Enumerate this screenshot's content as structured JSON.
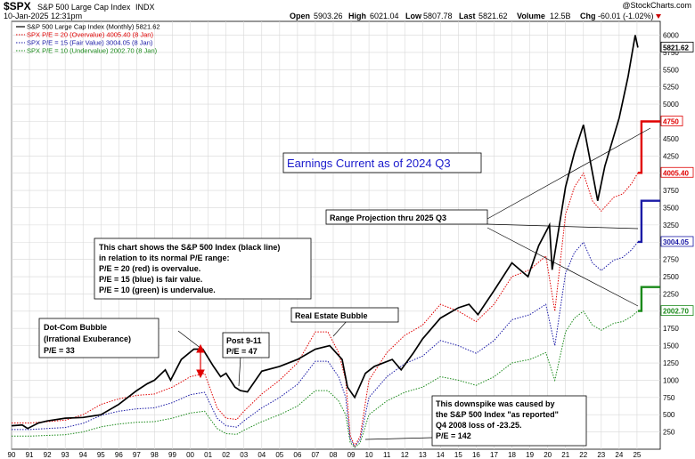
{
  "header": {
    "symbol": "$SPX",
    "name": "S&P 500 Large Cap Index",
    "exchange": "INDX",
    "date": "10-Jan-2025 12:31pm",
    "brand": "@StockCharts.com",
    "quote": {
      "open_label": "Open",
      "open": "5903.26",
      "high_label": "High",
      "high": "6021.04",
      "low_label": "Low",
      "low": "5807.78",
      "last_label": "Last",
      "last": "5821.62",
      "volume_label": "Volume",
      "volume": "12.5B",
      "chg_label": "Chg",
      "chg": "-60.01 (-1.02%)"
    }
  },
  "colors": {
    "black": "#000000",
    "red": "#e00000",
    "blue": "#1a1aa6",
    "green": "#1a8a1a",
    "title": "#1a1acc",
    "panel_bg": "#ffffff",
    "border": "#000000"
  },
  "legend": [
    {
      "text": "S&P 500 Large Cap Index (Monthly) 5821.62",
      "color": "#000000",
      "style": "solid"
    },
    {
      "text": "SPX P/E = 20 (Overvalue) 4005.40 (8 Jan)",
      "color": "#e00000",
      "style": "dotted"
    },
    {
      "text": "SPX P/E = 15 (Fair Value) 3004.05 (8 Jan)",
      "color": "#1a1aa6",
      "style": "dotted"
    },
    {
      "text": "SPX P/E = 10 (Undervalue) 2002.70 (8 Jan)",
      "color": "#1a8a1a",
      "style": "dotted"
    }
  ],
  "annotations": {
    "earnings": "Earnings Current as of 2024 Q3",
    "range": "Range Projection thru 2025 Q3",
    "explain": [
      "This chart shows the S&P 500 Index (black line)",
      "in relation to its normal P/E range:",
      "P/E = 20 (red) is overvalue.",
      "P/E = 15 (blue) is fair value.",
      "P/E = 10 (green) is undervalue."
    ],
    "dotcom": [
      "Dot-Com Bubble",
      "(Irrational Exuberance)",
      "P/E = 33"
    ],
    "post911": [
      "Post 9-11",
      "P/E = 47"
    ],
    "realestate": [
      "Real Estate Bubble"
    ],
    "downspike": [
      "This downspike was caused by",
      "the S&P 500 Index \"as reported\"",
      "Q4 2008 loss of -23.25.",
      "P/E = 142"
    ]
  },
  "chart_data": {
    "type": "line",
    "x_range": [
      1990.0,
      2026.3
    ],
    "ylim": [
      0,
      6200
    ],
    "y_ticks": [
      250,
      500,
      750,
      1000,
      1250,
      1500,
      1750,
      2000,
      2250,
      2500,
      2750,
      3000,
      3250,
      3500,
      3750,
      4000,
      4250,
      4500,
      4750,
      5000,
      5250,
      5500,
      5750,
      6000
    ],
    "x_tick_years": [
      1990,
      1991,
      1992,
      1993,
      1994,
      1995,
      1996,
      1997,
      1998,
      1999,
      2000,
      2001,
      2002,
      2003,
      2004,
      2005,
      2006,
      2007,
      2008,
      2009,
      2010,
      2011,
      2012,
      2013,
      2014,
      2015,
      2016,
      2017,
      2018,
      2019,
      2020,
      2021,
      2022,
      2023,
      2024,
      2025
    ],
    "x_tick_labels": [
      "90",
      "91",
      "92",
      "93",
      "94",
      "95",
      "96",
      "97",
      "98",
      "99",
      "00",
      "01",
      "02",
      "03",
      "04",
      "05",
      "06",
      "07",
      "08",
      "09",
      "10",
      "11",
      "12",
      "13",
      "14",
      "15",
      "16",
      "17",
      "18",
      "19",
      "20",
      "21",
      "22",
      "23",
      "24",
      "25"
    ],
    "series": [
      {
        "name": "S&P 500 Large Cap Index (Monthly) 5821.62",
        "color": "#000000",
        "x": [
          1990,
          1990.6,
          1990.9,
          1991.5,
          1992,
          1993,
          1994,
          1995,
          1996,
          1997,
          1997.6,
          1998,
          1998.6,
          1998.9,
          1999.5,
          2000.2,
          2000.7,
          2001.3,
          2001.7,
          2002.0,
          2002.5,
          2002.8,
          2003.2,
          2004,
          2005,
          2006,
          2007,
          2007.8,
          2008.5,
          2008.8,
          2009.2,
          2009.8,
          2010.3,
          2011.3,
          2011.8,
          2012.5,
          2013,
          2014,
          2015,
          2015.6,
          2016.1,
          2017,
          2018,
          2018.9,
          2019.5,
          2020.1,
          2020.25,
          2021,
          2021.5,
          2022.0,
          2022.8,
          2023.2,
          2024,
          2024.5,
          2024.9,
          2025.05
        ],
        "y": [
          340,
          350,
          300,
          380,
          410,
          450,
          460,
          500,
          650,
          850,
          950,
          1000,
          1150,
          1000,
          1300,
          1450,
          1450,
          1200,
          1050,
          1100,
          900,
          850,
          830,
          1130,
          1200,
          1300,
          1450,
          1500,
          1300,
          900,
          750,
          1100,
          1200,
          1300,
          1150,
          1400,
          1600,
          1900,
          2050,
          2100,
          1950,
          2300,
          2700,
          2500,
          2950,
          3250,
          2600,
          3800,
          4300,
          4700,
          3600,
          4100,
          4800,
          5400,
          6000,
          5821.62
        ]
      },
      {
        "name": "SPX P/E = 20 (Overvalue) 4005.40 (8 Jan)",
        "color": "#e00000",
        "x": [
          1990,
          1991,
          1992,
          1993,
          1994,
          1995,
          1996,
          1997,
          1998,
          1999,
          2000,
          2000.8,
          2001.5,
          2002,
          2002.6,
          2003,
          2004,
          2005,
          2006,
          2007,
          2007.7,
          2008.3,
          2008.7,
          2008.95,
          2009.2,
          2009.5,
          2010,
          2011,
          2012,
          2013,
          2014,
          2015,
          2016,
          2017,
          2018,
          2019,
          2019.9,
          2020.4,
          2020.7,
          2021,
          2021.5,
          2022,
          2022.5,
          2023,
          2023.7,
          2024.2,
          2024.7,
          2025.05
        ],
        "y": [
          380,
          380,
          400,
          420,
          500,
          650,
          730,
          780,
          800,
          900,
          1050,
          1100,
          600,
          450,
          430,
          550,
          800,
          1000,
          1250,
          1700,
          1700,
          1400,
          1000,
          200,
          50,
          180,
          1000,
          1400,
          1650,
          1800,
          2100,
          2000,
          1850,
          2100,
          2500,
          2600,
          2800,
          2000,
          2700,
          3400,
          3800,
          4000,
          3600,
          3450,
          3650,
          3700,
          3850,
          4005.4
        ]
      },
      {
        "name": "SPX P/E = 15 (Fair Value) 3004.05 (8 Jan)",
        "color": "#1a1aa6",
        "x": [
          1990,
          1991,
          1992,
          1993,
          1994,
          1995,
          1996,
          1997,
          1998,
          1999,
          2000,
          2000.8,
          2001.5,
          2002,
          2002.6,
          2003,
          2004,
          2005,
          2006,
          2007,
          2007.7,
          2008.3,
          2008.7,
          2008.95,
          2009.2,
          2009.5,
          2010,
          2011,
          2012,
          2013,
          2014,
          2015,
          2016,
          2017,
          2018,
          2019,
          2019.9,
          2020.4,
          2020.7,
          2021,
          2021.5,
          2022,
          2022.5,
          2023,
          2023.7,
          2024.2,
          2024.7,
          2025.05
        ],
        "y": [
          285,
          285,
          300,
          315,
          375,
          490,
          550,
          585,
          600,
          675,
          790,
          825,
          450,
          340,
          320,
          410,
          600,
          750,
          940,
          1275,
          1275,
          1050,
          750,
          150,
          40,
          135,
          750,
          1050,
          1240,
          1350,
          1575,
          1500,
          1390,
          1575,
          1875,
          1950,
          2100,
          1500,
          2025,
          2550,
          2850,
          3000,
          2700,
          2590,
          2740,
          2780,
          2890,
          3004.05
        ]
      },
      {
        "name": "SPX P/E = 10 (Undervalue) 2002.70 (8 Jan)",
        "color": "#1a8a1a",
        "x": [
          1990,
          1991,
          1992,
          1993,
          1994,
          1995,
          1996,
          1997,
          1998,
          1999,
          2000,
          2000.8,
          2001.5,
          2002,
          2002.6,
          2003,
          2004,
          2005,
          2006,
          2007,
          2007.7,
          2008.3,
          2008.7,
          2008.95,
          2009.2,
          2009.5,
          2010,
          2011,
          2012,
          2013,
          2014,
          2015,
          2016,
          2017,
          2018,
          2019,
          2019.9,
          2020.4,
          2020.7,
          2021,
          2021.5,
          2022,
          2022.5,
          2023,
          2023.7,
          2024.2,
          2024.7,
          2025.05
        ],
        "y": [
          190,
          190,
          200,
          210,
          250,
          325,
          365,
          390,
          400,
          450,
          525,
          550,
          300,
          225,
          215,
          275,
          400,
          500,
          625,
          850,
          850,
          700,
          500,
          100,
          25,
          90,
          500,
          700,
          825,
          900,
          1050,
          1000,
          925,
          1050,
          1250,
          1300,
          1400,
          1000,
          1350,
          1700,
          1900,
          2000,
          1800,
          1725,
          1825,
          1850,
          1925,
          2002.7
        ]
      }
    ],
    "projections": [
      {
        "color": "#e00000",
        "x": [
          2025.05,
          2025.25,
          2025.25,
          2026.3
        ],
        "y": [
          4005.4,
          4005.4,
          4750,
          4750
        ]
      },
      {
        "color": "#1a1aa6",
        "x": [
          2025.05,
          2025.25,
          2025.25,
          2026.3
        ],
        "y": [
          3004.05,
          3004.05,
          3600,
          3600
        ]
      },
      {
        "color": "#1a8a1a",
        "x": [
          2025.05,
          2025.25,
          2025.25,
          2026.3
        ],
        "y": [
          2002.7,
          2002.7,
          2350,
          2350
        ]
      }
    ],
    "value_labels": [
      {
        "text": "5821.62",
        "y": 5821.62,
        "style": "black"
      },
      {
        "text": "4750",
        "y": 4750,
        "style": "red"
      },
      {
        "text": "4005.40",
        "y": 4005.4,
        "style": "red"
      },
      {
        "text": "3004.05",
        "y": 3004.05,
        "style": "blue"
      },
      {
        "text": "2002.70",
        "y": 2002.7,
        "style": "green"
      }
    ]
  }
}
